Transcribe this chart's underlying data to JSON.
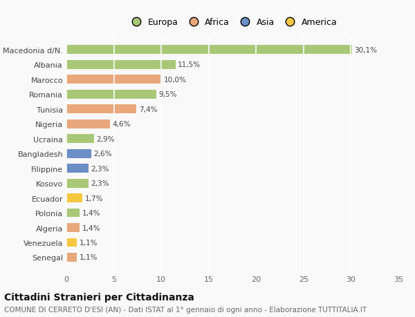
{
  "categories": [
    "Senegal",
    "Venezuela",
    "Algeria",
    "Polonia",
    "Ecuador",
    "Kosovo",
    "Filippine",
    "Bangladesh",
    "Ucraina",
    "Nigeria",
    "Tunisia",
    "Romania",
    "Marocco",
    "Albania",
    "Macedonia d/N."
  ],
  "values": [
    1.1,
    1.1,
    1.4,
    1.4,
    1.7,
    2.3,
    2.3,
    2.6,
    2.9,
    4.6,
    7.4,
    9.5,
    10.0,
    11.5,
    30.1
  ],
  "colors": [
    "#e8a87c",
    "#f5c842",
    "#e8a87c",
    "#a8c878",
    "#f5c842",
    "#a8c878",
    "#6b8ec4",
    "#6b8ec4",
    "#a8c878",
    "#e8a87c",
    "#e8a87c",
    "#a8c878",
    "#e8a87c",
    "#a8c878",
    "#a8c878"
  ],
  "labels": [
    "1,1%",
    "1,1%",
    "1,4%",
    "1,4%",
    "1,7%",
    "2,3%",
    "2,3%",
    "2,6%",
    "2,9%",
    "4,6%",
    "7,4%",
    "9,5%",
    "10,0%",
    "11,5%",
    "30,1%"
  ],
  "legend_labels": [
    "Europa",
    "Africa",
    "Asia",
    "America"
  ],
  "legend_colors": [
    "#a8c878",
    "#e8a87c",
    "#6b8ec4",
    "#f5c842"
  ],
  "xlim": [
    0,
    35
  ],
  "xticks": [
    0,
    5,
    10,
    15,
    20,
    25,
    30,
    35
  ],
  "title": "Cittadini Stranieri per Cittadinanza",
  "subtitle": "COMUNE DI CERRETO D'ESI (AN) - Dati ISTAT al 1° gennaio di ogni anno - Elaborazione TUTTITALIA.IT",
  "background_color": "#f9f9f9",
  "grid_color": "#e8e8e8",
  "bar_height": 0.6,
  "title_fontsize": 10,
  "subtitle_fontsize": 7.5,
  "label_fontsize": 7.5,
  "tick_fontsize": 8,
  "legend_fontsize": 9
}
